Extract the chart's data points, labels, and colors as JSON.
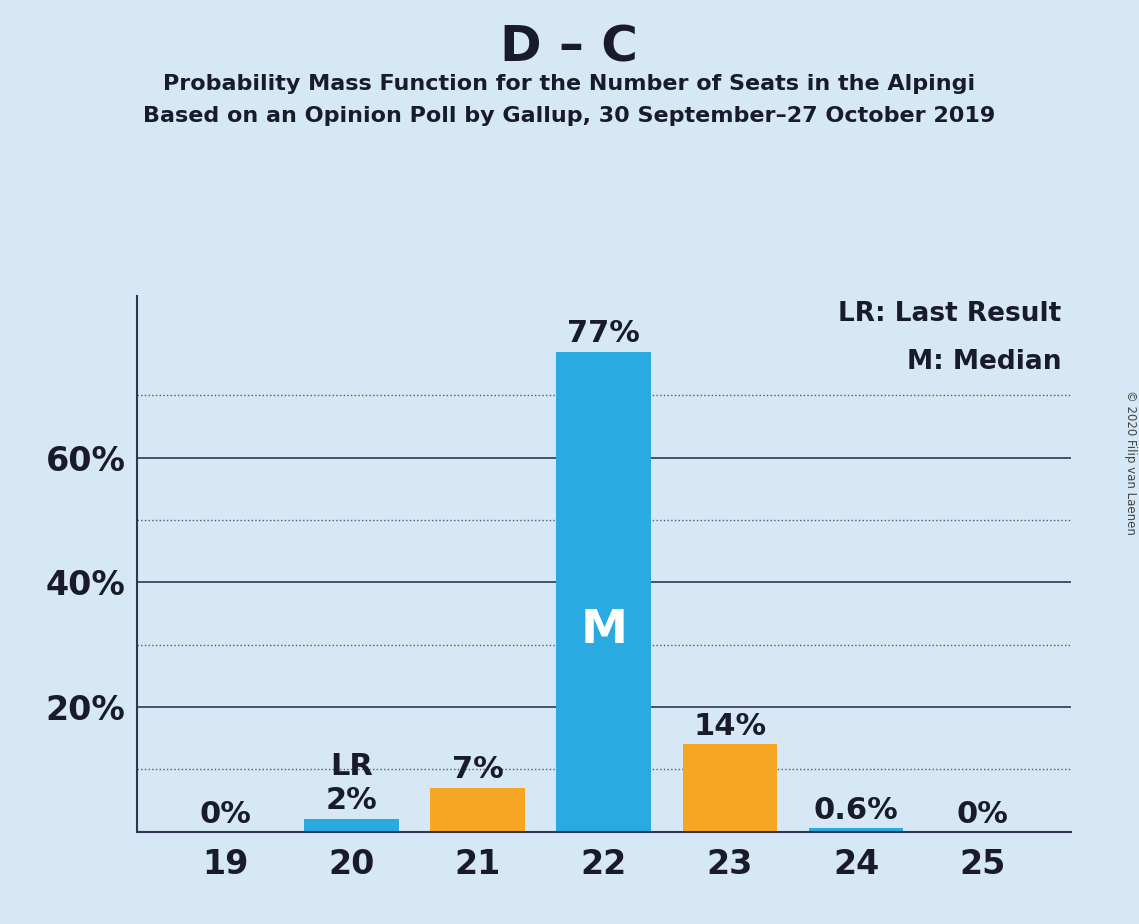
{
  "title": "D – C",
  "subtitle1": "Probability Mass Function for the Number of Seats in the Alpingi",
  "subtitle2": "Based on an Opinion Poll by Gallup, 30 September–27 October 2019",
  "copyright": "© 2020 Filip van Laenen",
  "legend_lr": "LR: Last Result",
  "legend_m": "M: Median",
  "seats": [
    19,
    20,
    21,
    22,
    23,
    24,
    25
  ],
  "probabilities": [
    0.0,
    0.02,
    0.07,
    0.77,
    0.14,
    0.006,
    0.0
  ],
  "prob_labels": [
    "0%",
    "2%",
    "7%",
    "77%",
    "14%",
    "0.6%",
    "0%"
  ],
  "bar_colors": [
    "#29ABE2",
    "#29ABE2",
    "#F5A623",
    "#29ABE2",
    "#F5A623",
    "#29ABE2",
    "#29ABE2"
  ],
  "last_result_seat": 20,
  "median_seat": 22,
  "median_label": "M",
  "lr_label": "LR",
  "background_color": "#D6E8F5",
  "title_fontsize": 36,
  "subtitle_fontsize": 16,
  "tick_fontsize": 24,
  "annotation_fontsize": 22,
  "legend_fontsize": 19,
  "yticks_solid": [
    0.2,
    0.4,
    0.6
  ],
  "yticks_dotted": [
    0.1,
    0.3,
    0.5,
    0.7
  ],
  "ytick_labels_values": [
    0.2,
    0.4,
    0.6
  ],
  "ytick_labels": [
    "20%",
    "40%",
    "60%"
  ],
  "ylim": [
    0.0,
    0.86
  ],
  "xlim": [
    18.3,
    25.7
  ]
}
